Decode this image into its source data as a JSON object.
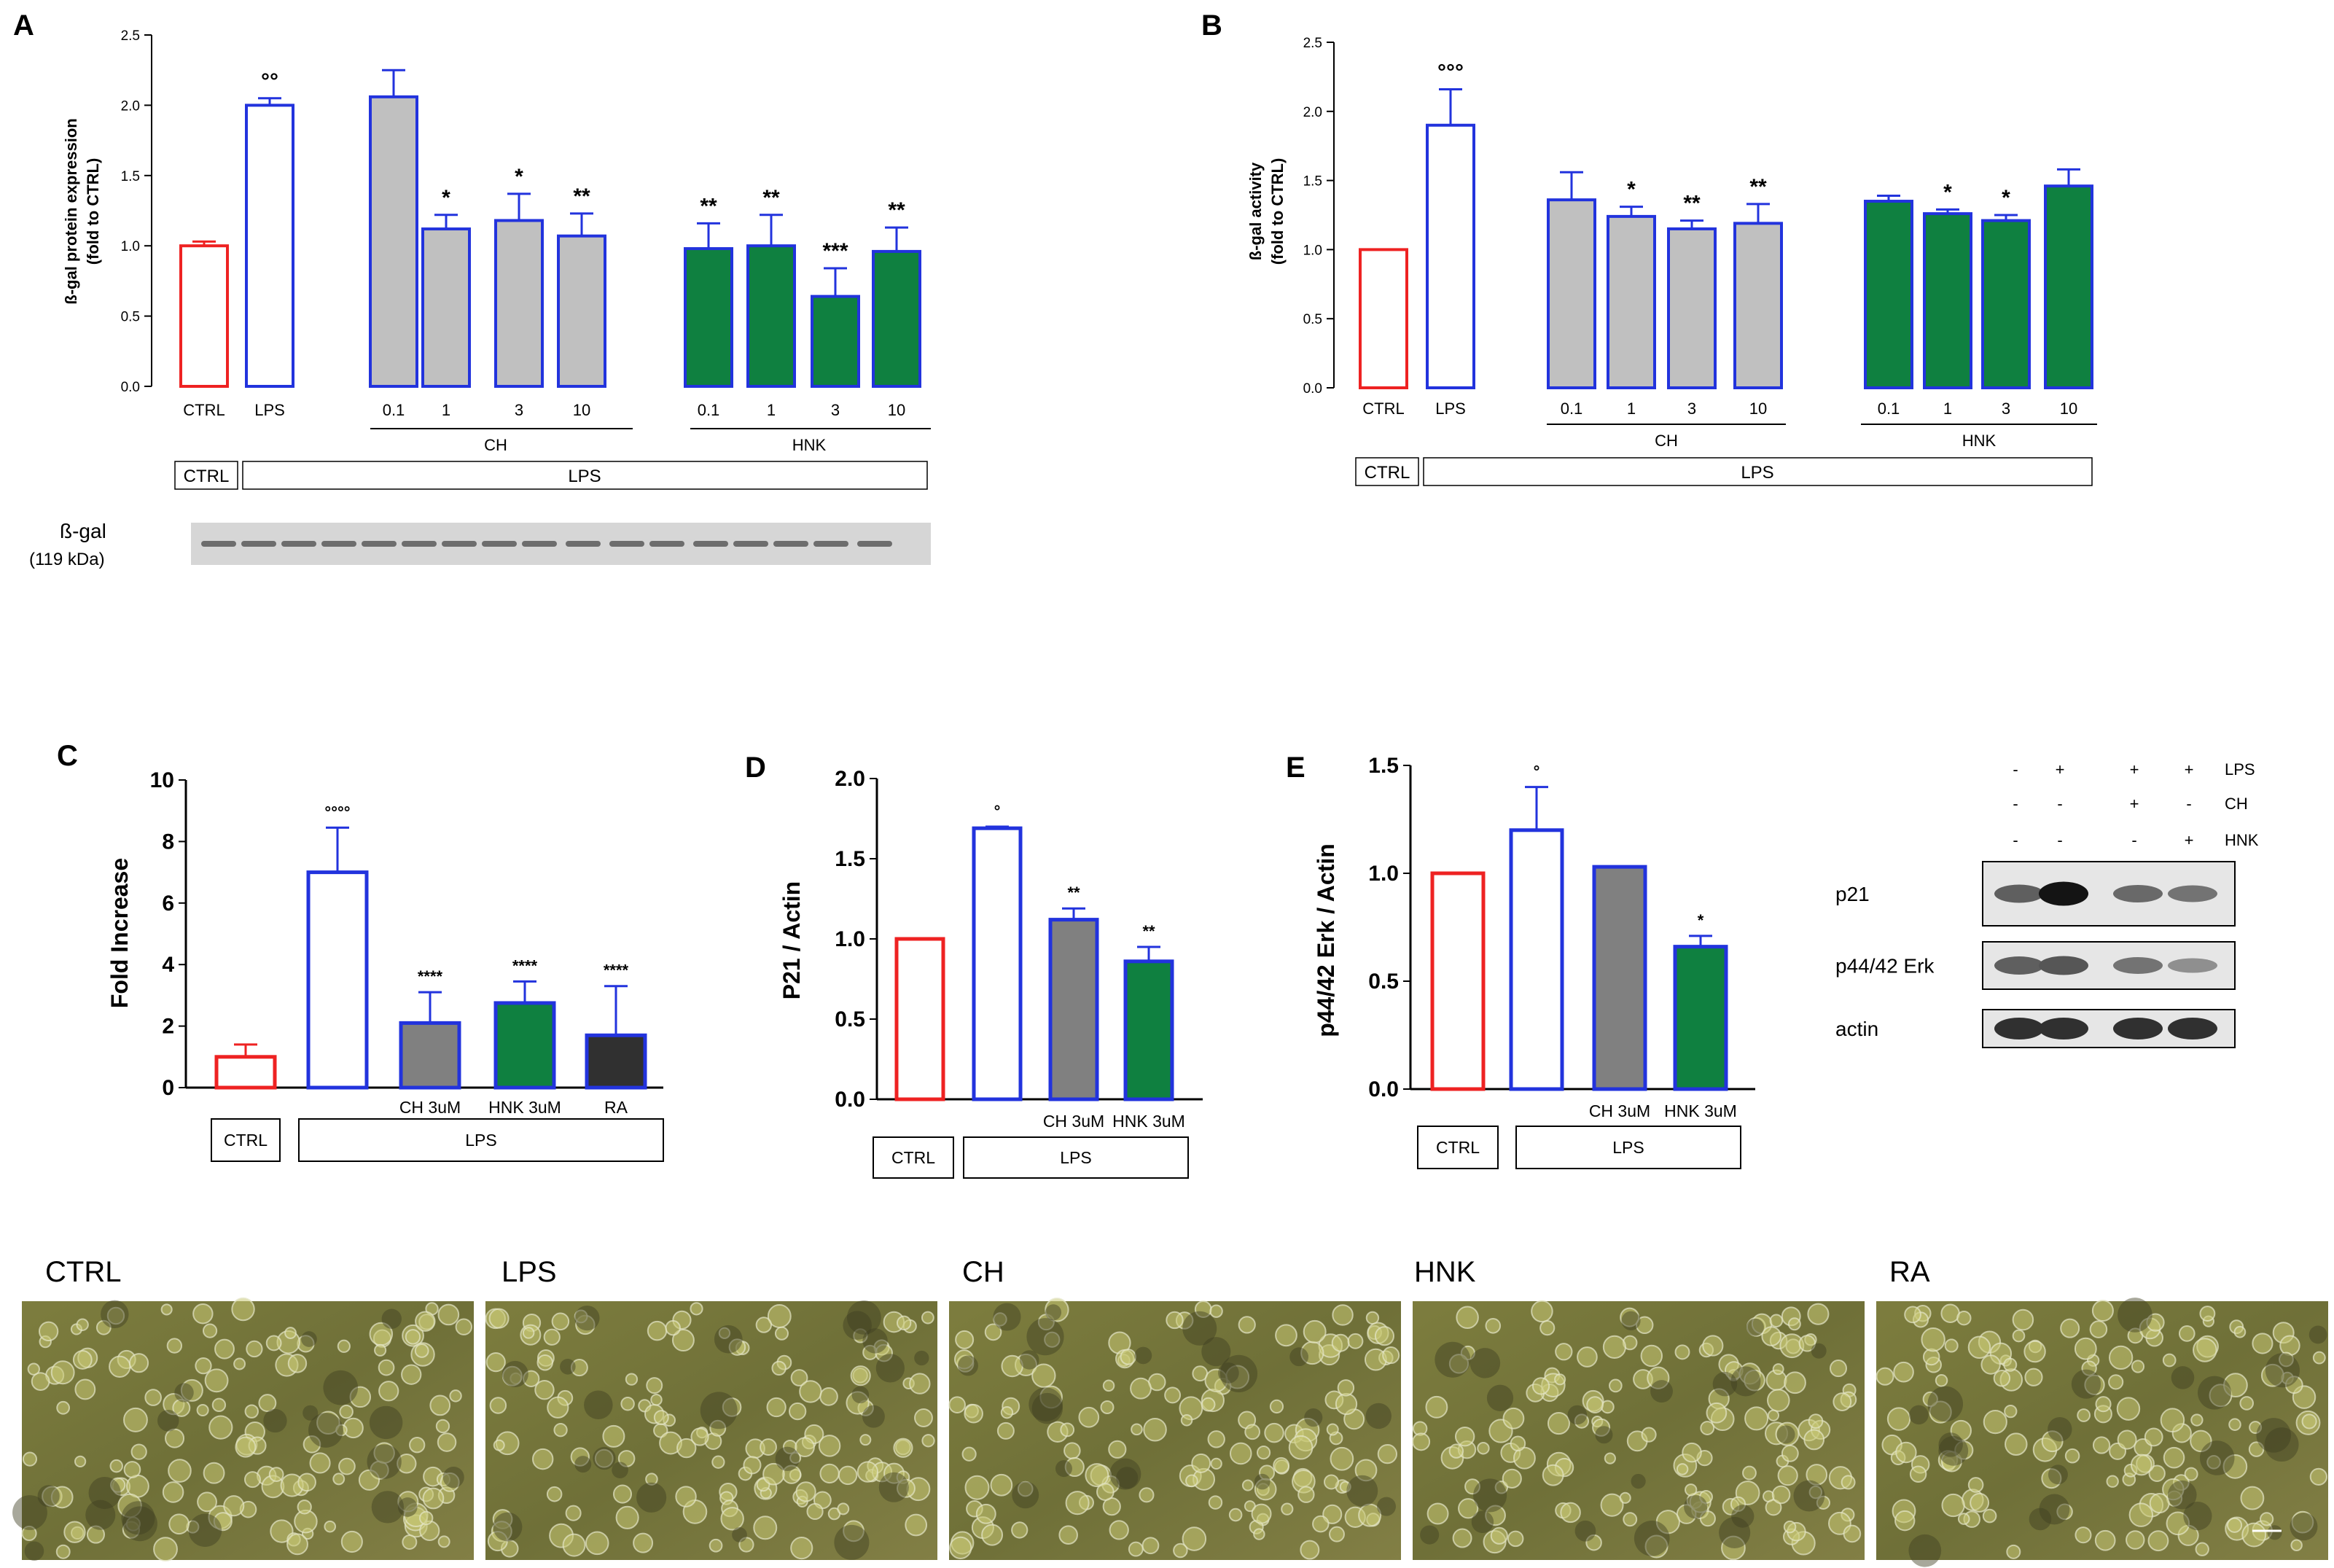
{
  "panels": {
    "A": {
      "label": "A"
    },
    "B": {
      "label": "B"
    },
    "C": {
      "label": "C"
    },
    "D": {
      "label": "D"
    },
    "E": {
      "label": "E"
    }
  },
  "chart_data": [
    {
      "id": "A",
      "type": "bar",
      "ylabel_line1": "ß-gal protein expression",
      "ylabel_line2": "(fold to CTRL)",
      "ylim": [
        0,
        2.5
      ],
      "yticks": [
        "0.0",
        "0.5",
        "1.0",
        "1.5",
        "2.0",
        "2.5"
      ],
      "categories": [
        "CTRL",
        "LPS",
        "0.1",
        "1",
        "3",
        "10",
        "0.1",
        "1",
        "3",
        "10"
      ],
      "values": [
        1.0,
        2.0,
        2.06,
        1.12,
        1.18,
        1.07,
        0.98,
        1.0,
        0.64,
        0.96
      ],
      "errors": [
        0.03,
        0.05,
        0.19,
        0.1,
        0.19,
        0.16,
        0.18,
        0.22,
        0.2,
        0.17
      ],
      "fills": [
        "#ffffff",
        "#ffffff",
        "#c0c0c0",
        "#c0c0c0",
        "#c0c0c0",
        "#c0c0c0",
        "#0f8040",
        "#0f8040",
        "#0f8040",
        "#0f8040"
      ],
      "strokes": [
        "#ee2222",
        "#2233dd",
        "#2233dd",
        "#2233dd",
        "#2233dd",
        "#2233dd",
        "#2233dd",
        "#2233dd",
        "#2233dd",
        "#2233dd"
      ],
      "sig": [
        "",
        "°°",
        "",
        "*",
        "*",
        "**",
        "**",
        "**",
        "***",
        "**"
      ],
      "groups": [
        "CH",
        "HNK"
      ],
      "conditions": [
        "CTRL",
        "LPS"
      ],
      "blot_label": "ß-gal",
      "blot_kda": "(119 kDa)"
    },
    {
      "id": "B",
      "type": "bar",
      "ylabel_line1": "ß-gal activity",
      "ylabel_line2": "(fold to CTRL)",
      "ylim": [
        0,
        2.5
      ],
      "yticks": [
        "0.0",
        "0.5",
        "1.0",
        "1.5",
        "2.0",
        "2.5"
      ],
      "categories": [
        "CTRL",
        "LPS",
        "0.1",
        "1",
        "3",
        "10",
        "0.1",
        "1",
        "3",
        "10"
      ],
      "values": [
        1.0,
        1.9,
        1.36,
        1.24,
        1.15,
        1.19,
        1.35,
        1.26,
        1.21,
        1.46
      ],
      "errors": [
        0,
        0.26,
        0.2,
        0.07,
        0.06,
        0.14,
        0.04,
        0.03,
        0.04,
        0.12
      ],
      "fills": [
        "#ffffff",
        "#ffffff",
        "#c0c0c0",
        "#c0c0c0",
        "#c0c0c0",
        "#c0c0c0",
        "#0f8040",
        "#0f8040",
        "#0f8040",
        "#0f8040"
      ],
      "strokes": [
        "#ee2222",
        "#2233dd",
        "#2233dd",
        "#2233dd",
        "#2233dd",
        "#2233dd",
        "#2233dd",
        "#2233dd",
        "#2233dd",
        "#2233dd"
      ],
      "sig": [
        "",
        "°°°",
        "",
        "*",
        "**",
        "**",
        "",
        "*",
        "*",
        ""
      ],
      "groups": [
        "CH",
        "HNK"
      ],
      "conditions": [
        "CTRL",
        "LPS"
      ]
    },
    {
      "id": "C",
      "type": "bar",
      "ylabel": "Fold Increase",
      "ylim": [
        0,
        10
      ],
      "yticks": [
        "0",
        "2",
        "4",
        "6",
        "8",
        "10"
      ],
      "categories": [
        "",
        "",
        "CH 3uM",
        "HNK 3uM",
        "RA"
      ],
      "values": [
        1.0,
        7.0,
        2.1,
        2.75,
        1.7
      ],
      "errors": [
        0.4,
        1.45,
        1.0,
        0.7,
        1.6
      ],
      "fills": [
        "#ffffff",
        "#ffffff",
        "#808080",
        "#0f8040",
        "#303030"
      ],
      "strokes": [
        "#ee2222",
        "#2233dd",
        "#2233dd",
        "#2233dd",
        "#2233dd"
      ],
      "sig": [
        "",
        "°°°°",
        "****",
        "****",
        "****"
      ],
      "conditions": [
        "CTRL",
        "LPS"
      ]
    },
    {
      "id": "D",
      "type": "bar",
      "ylabel": "P21  / Actin",
      "ylim": [
        0,
        2.0
      ],
      "yticks": [
        "0.0",
        "0.5",
        "1.0",
        "1.5",
        "2.0"
      ],
      "categories": [
        "",
        "",
        "CH 3uM",
        "HNK 3uM"
      ],
      "values": [
        1.0,
        1.69,
        1.12,
        0.86
      ],
      "errors": [
        0,
        0.01,
        0.07,
        0.09
      ],
      "fills": [
        "#ffffff",
        "#ffffff",
        "#808080",
        "#0f8040"
      ],
      "strokes": [
        "#ee2222",
        "#2233dd",
        "#2233dd",
        "#2233dd"
      ],
      "sig": [
        "",
        "°",
        "**",
        "**"
      ],
      "conditions": [
        "CTRL",
        "LPS"
      ]
    },
    {
      "id": "E",
      "type": "bar",
      "ylabel": "p44/42 Erk / Actin",
      "ylim": [
        0,
        1.5
      ],
      "yticks": [
        "0.0",
        "0.5",
        "1.0",
        "1.5"
      ],
      "categories": [
        "",
        "",
        "CH 3uM",
        "HNK 3uM"
      ],
      "values": [
        1.0,
        1.2,
        1.03,
        0.66
      ],
      "errors": [
        0,
        0.2,
        0,
        0.05
      ],
      "fills": [
        "#ffffff",
        "#ffffff",
        "#808080",
        "#0f8040"
      ],
      "strokes": [
        "#ee2222",
        "#2233dd",
        "#2233dd",
        "#2233dd"
      ],
      "sig": [
        "",
        "°",
        "",
        "*"
      ],
      "conditions": [
        "CTRL",
        "LPS"
      ]
    }
  ],
  "western_blot_E": {
    "treatments": [
      {
        "name": "LPS",
        "signs": [
          "-",
          "+",
          "+",
          "+"
        ]
      },
      {
        "name": "CH",
        "signs": [
          "-",
          "-",
          "+",
          "-"
        ]
      },
      {
        "name": "HNK",
        "signs": [
          "-",
          "-",
          "-",
          "+"
        ]
      }
    ],
    "rows": [
      {
        "label": "p21",
        "intensity": [
          0.55,
          0.95,
          0.5,
          0.45
        ]
      },
      {
        "label": "p44/42 Erk",
        "intensity": [
          0.55,
          0.6,
          0.45,
          0.3
        ]
      },
      {
        "label": "actin",
        "intensity": [
          0.8,
          0.8,
          0.8,
          0.8
        ]
      }
    ]
  },
  "micrographs": [
    {
      "label": "CTRL"
    },
    {
      "label": "LPS"
    },
    {
      "label": "CH"
    },
    {
      "label": "HNK"
    },
    {
      "label": "RA"
    }
  ]
}
